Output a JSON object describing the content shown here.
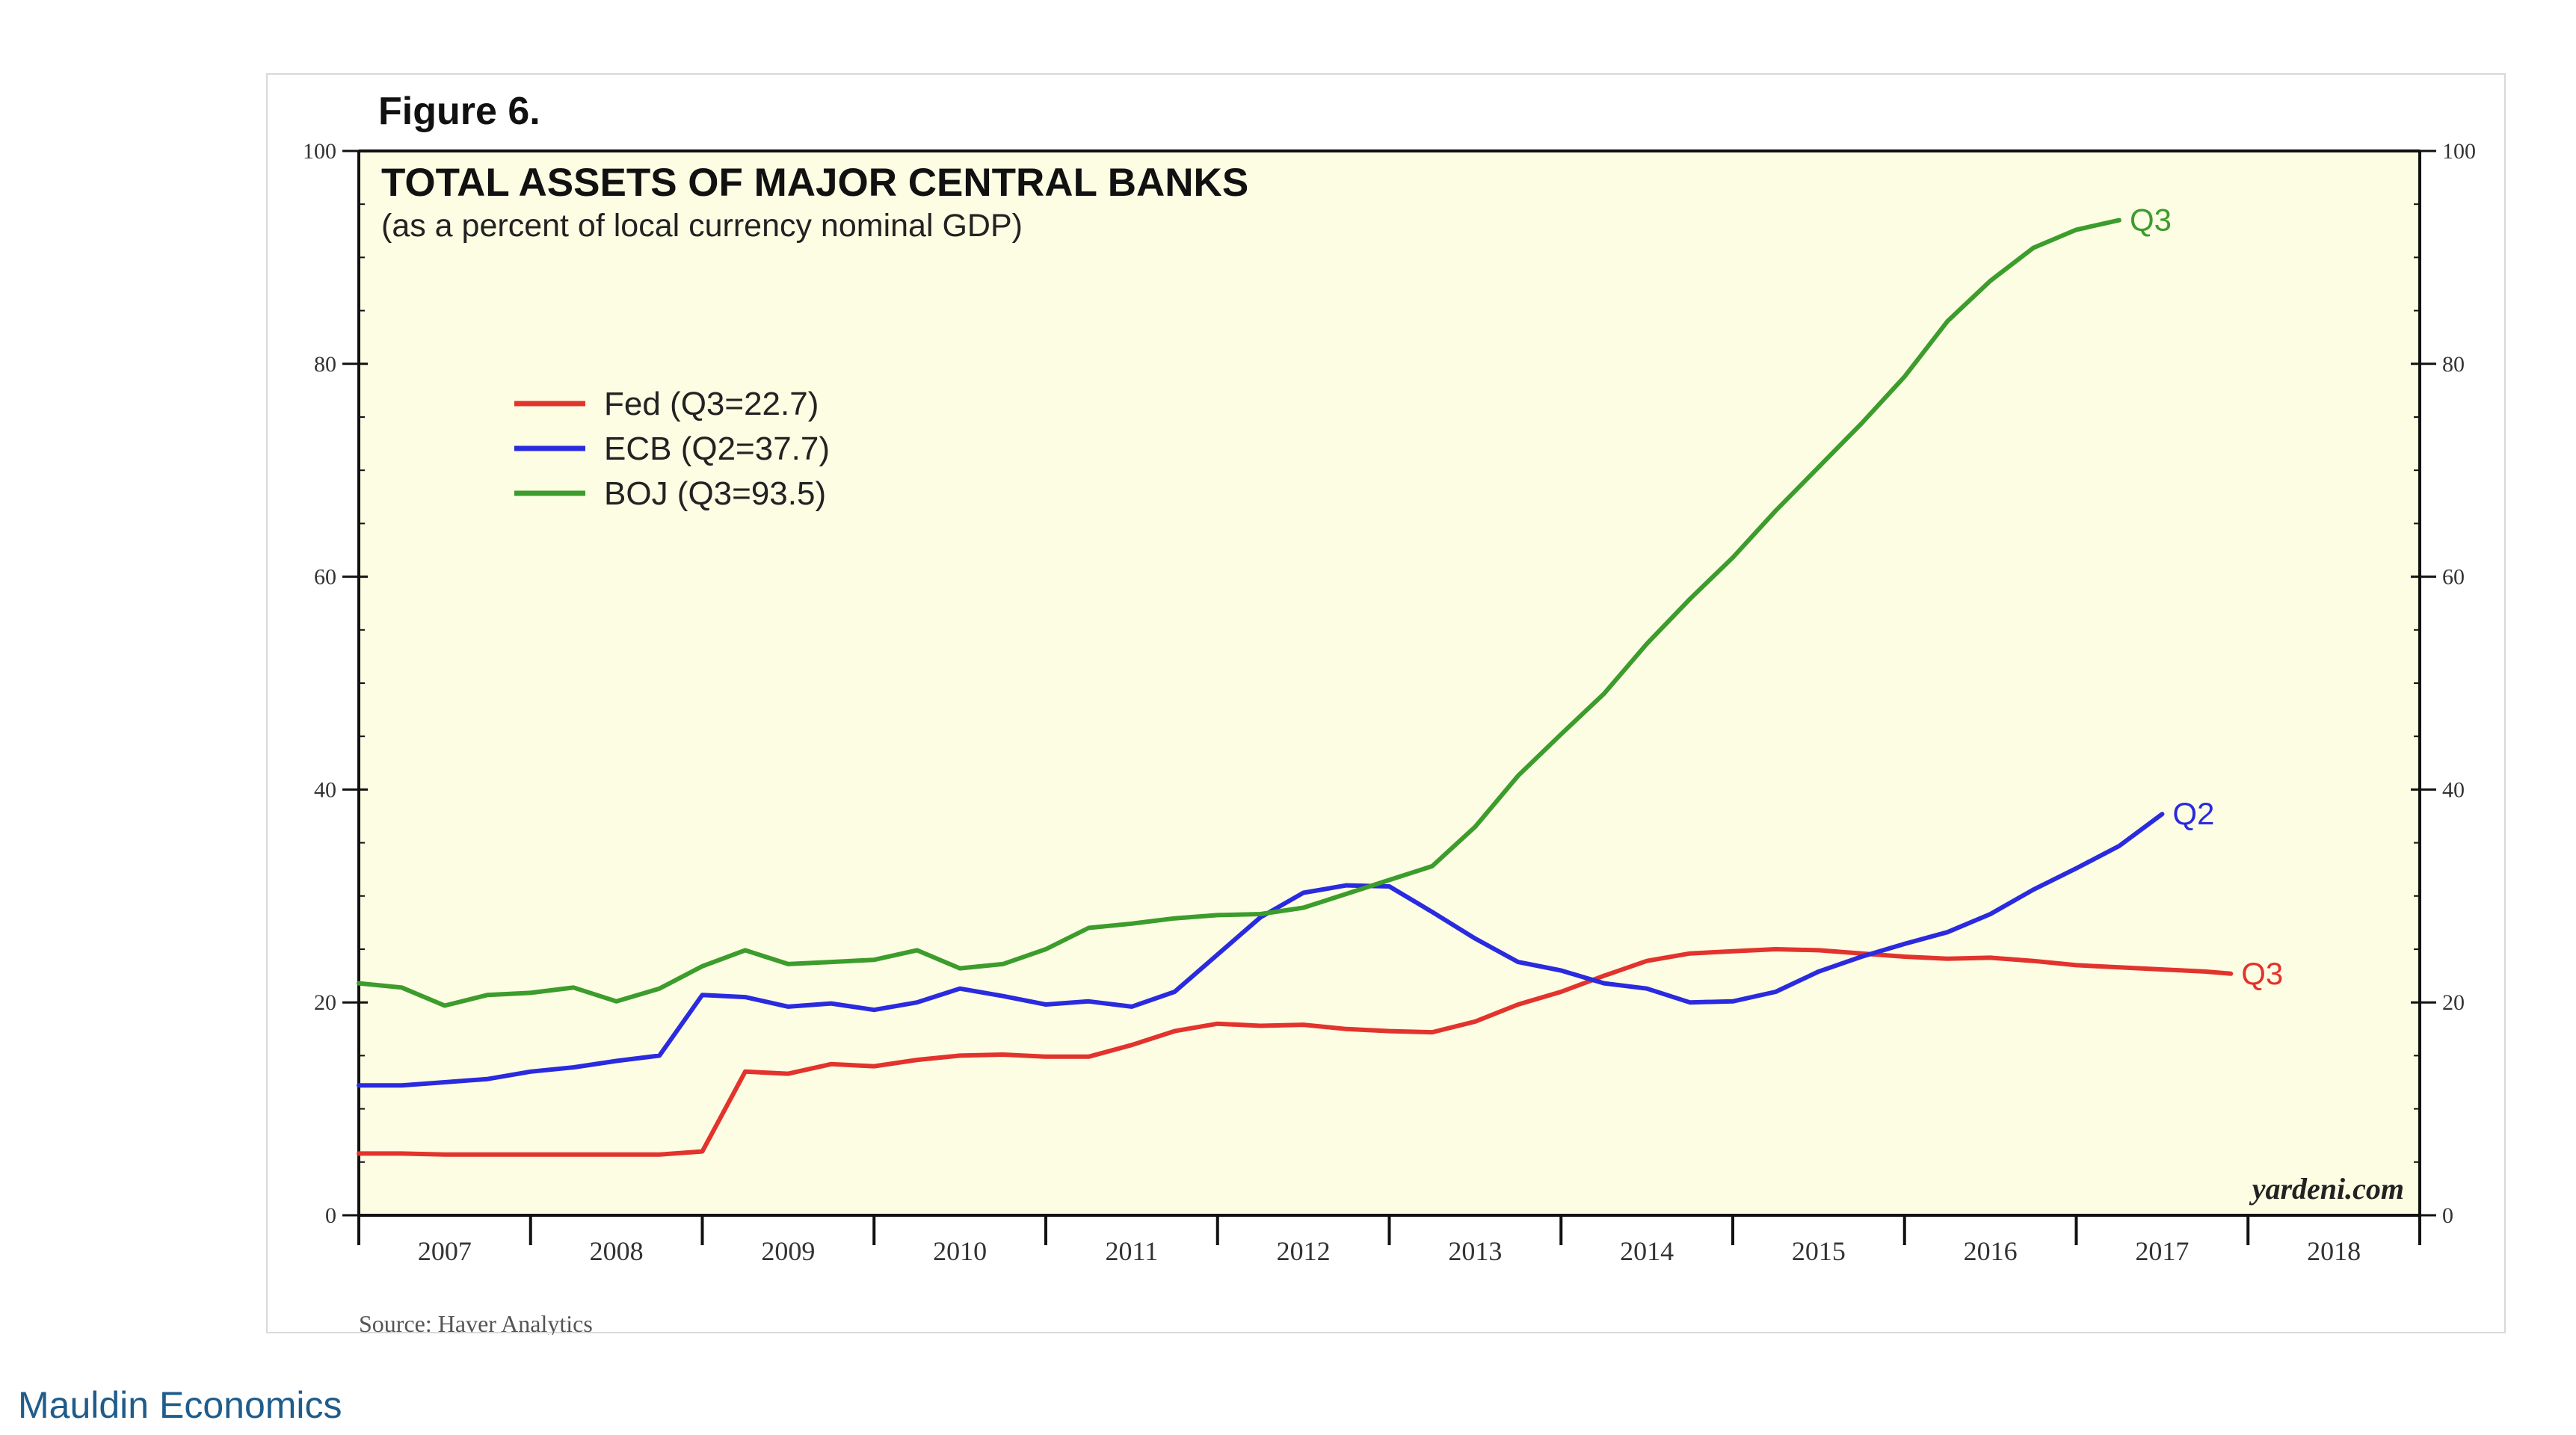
{
  "figure_label": "Figure 6.",
  "source_note": "Source: Haver Analytics",
  "watermark": "yardeni.com",
  "caption_link": "Mauldin Economics",
  "chart_data": {
    "type": "line",
    "title": "TOTAL ASSETS OF MAJOR CENTRAL BANKS",
    "subtitle": "(as a percent of local currency nominal GDP)",
    "xlabel": "",
    "ylabel": "",
    "ylim": [
      0,
      100
    ],
    "yticks": [
      0,
      20,
      40,
      60,
      80,
      100
    ],
    "xlim": [
      2006.5,
      2018.5
    ],
    "year_ticks": [
      "2007",
      "2008",
      "2009",
      "2010",
      "2011",
      "2012",
      "2013",
      "2014",
      "2015",
      "2016",
      "2017",
      "2018"
    ],
    "grid": false,
    "legend_position": "top-left",
    "background": "#fdfde4",
    "series": [
      {
        "name": "Fed (Q3=22.7)",
        "color": "#e2332c",
        "end_label": "Q3",
        "points": [
          [
            2006.5,
            5.8
          ],
          [
            2006.75,
            5.8
          ],
          [
            2007.0,
            5.7
          ],
          [
            2007.25,
            5.7
          ],
          [
            2007.5,
            5.7
          ],
          [
            2007.75,
            5.7
          ],
          [
            2008.0,
            5.7
          ],
          [
            2008.25,
            5.7
          ],
          [
            2008.5,
            6.0
          ],
          [
            2008.75,
            13.5
          ],
          [
            2009.0,
            13.3
          ],
          [
            2009.25,
            14.2
          ],
          [
            2009.5,
            14.0
          ],
          [
            2009.75,
            14.6
          ],
          [
            2010.0,
            15.0
          ],
          [
            2010.25,
            15.1
          ],
          [
            2010.5,
            14.9
          ],
          [
            2010.75,
            14.9
          ],
          [
            2011.0,
            16.0
          ],
          [
            2011.25,
            17.3
          ],
          [
            2011.5,
            18.0
          ],
          [
            2011.75,
            17.8
          ],
          [
            2012.0,
            17.9
          ],
          [
            2012.25,
            17.5
          ],
          [
            2012.5,
            17.3
          ],
          [
            2012.75,
            17.2
          ],
          [
            2013.0,
            18.2
          ],
          [
            2013.25,
            19.8
          ],
          [
            2013.5,
            21.0
          ],
          [
            2013.75,
            22.5
          ],
          [
            2014.0,
            23.9
          ],
          [
            2014.25,
            24.6
          ],
          [
            2014.5,
            24.8
          ],
          [
            2014.75,
            25.0
          ],
          [
            2015.0,
            24.9
          ],
          [
            2015.25,
            24.6
          ],
          [
            2015.5,
            24.3
          ],
          [
            2015.75,
            24.1
          ],
          [
            2016.0,
            24.2
          ],
          [
            2016.25,
            23.9
          ],
          [
            2016.5,
            23.5
          ],
          [
            2016.75,
            23.3
          ],
          [
            2017.0,
            23.1
          ],
          [
            2017.25,
            22.9
          ],
          [
            2017.4,
            22.7
          ]
        ]
      },
      {
        "name": "ECB (Q2=37.7)",
        "color": "#2a2adf",
        "end_label": "Q2",
        "points": [
          [
            2006.5,
            12.2
          ],
          [
            2006.75,
            12.2
          ],
          [
            2007.0,
            12.5
          ],
          [
            2007.25,
            12.8
          ],
          [
            2007.5,
            13.5
          ],
          [
            2007.75,
            13.9
          ],
          [
            2008.0,
            14.5
          ],
          [
            2008.25,
            15.0
          ],
          [
            2008.5,
            20.7
          ],
          [
            2008.75,
            20.5
          ],
          [
            2009.0,
            19.6
          ],
          [
            2009.25,
            19.9
          ],
          [
            2009.5,
            19.3
          ],
          [
            2009.75,
            20.0
          ],
          [
            2010.0,
            21.3
          ],
          [
            2010.25,
            20.6
          ],
          [
            2010.5,
            19.8
          ],
          [
            2010.75,
            20.1
          ],
          [
            2011.0,
            19.6
          ],
          [
            2011.25,
            21.0
          ],
          [
            2011.5,
            24.5
          ],
          [
            2011.75,
            28.0
          ],
          [
            2012.0,
            30.3
          ],
          [
            2012.25,
            31.0
          ],
          [
            2012.5,
            30.9
          ],
          [
            2012.75,
            28.5
          ],
          [
            2013.0,
            26.0
          ],
          [
            2013.25,
            23.8
          ],
          [
            2013.5,
            23.0
          ],
          [
            2013.75,
            21.8
          ],
          [
            2014.0,
            21.3
          ],
          [
            2014.25,
            20.0
          ],
          [
            2014.5,
            20.1
          ],
          [
            2014.75,
            21.0
          ],
          [
            2015.0,
            22.9
          ],
          [
            2015.25,
            24.3
          ],
          [
            2015.5,
            25.5
          ],
          [
            2015.75,
            26.6
          ],
          [
            2016.0,
            28.3
          ],
          [
            2016.25,
            30.6
          ],
          [
            2016.5,
            32.6
          ],
          [
            2016.75,
            34.7
          ],
          [
            2017.0,
            37.7
          ]
        ]
      },
      {
        "name": "BOJ (Q3=93.5)",
        "color": "#3c9c2c",
        "end_label": "Q3",
        "points": [
          [
            2006.5,
            21.8
          ],
          [
            2006.75,
            21.4
          ],
          [
            2007.0,
            19.7
          ],
          [
            2007.25,
            20.7
          ],
          [
            2007.5,
            20.9
          ],
          [
            2007.75,
            21.4
          ],
          [
            2008.0,
            20.1
          ],
          [
            2008.25,
            21.3
          ],
          [
            2008.5,
            23.4
          ],
          [
            2008.75,
            24.9
          ],
          [
            2009.0,
            23.6
          ],
          [
            2009.25,
            23.8
          ],
          [
            2009.5,
            24.0
          ],
          [
            2009.75,
            24.9
          ],
          [
            2010.0,
            23.2
          ],
          [
            2010.25,
            23.6
          ],
          [
            2010.5,
            25.0
          ],
          [
            2010.75,
            27.0
          ],
          [
            2011.0,
            27.4
          ],
          [
            2011.25,
            27.9
          ],
          [
            2011.5,
            28.2
          ],
          [
            2011.75,
            28.3
          ],
          [
            2012.0,
            28.9
          ],
          [
            2012.25,
            30.2
          ],
          [
            2012.5,
            31.5
          ],
          [
            2012.75,
            32.8
          ],
          [
            2013.0,
            36.5
          ],
          [
            2013.25,
            41.3
          ],
          [
            2013.5,
            45.2
          ],
          [
            2013.75,
            49.0
          ],
          [
            2014.0,
            53.7
          ],
          [
            2014.25,
            57.9
          ],
          [
            2014.5,
            61.8
          ],
          [
            2014.75,
            66.2
          ],
          [
            2015.0,
            70.3
          ],
          [
            2015.25,
            74.4
          ],
          [
            2015.5,
            78.8
          ],
          [
            2015.75,
            84.0
          ],
          [
            2016.0,
            87.8
          ],
          [
            2016.25,
            90.9
          ],
          [
            2016.5,
            92.6
          ],
          [
            2016.75,
            93.5
          ]
        ]
      }
    ]
  }
}
